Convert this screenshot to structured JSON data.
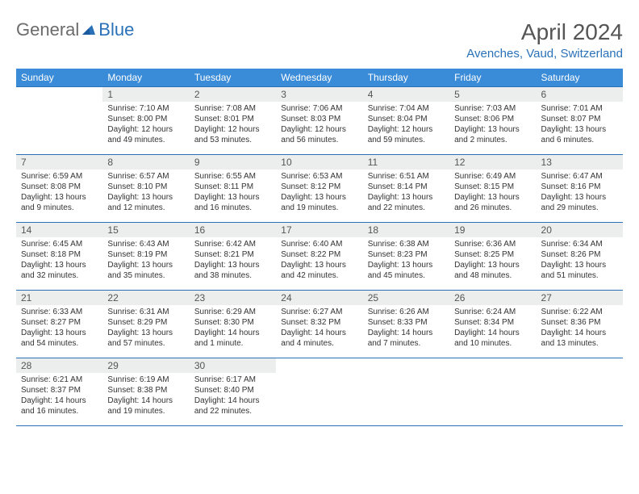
{
  "logo": {
    "general": "General",
    "blue": "Blue"
  },
  "title": "April 2024",
  "location": "Avenches, Vaud, Switzerland",
  "colors": {
    "header_bg": "#3a8bd8",
    "accent": "#2a71b8",
    "daynum_bg": "#eceded",
    "text": "#333333",
    "title_text": "#555555"
  },
  "weekdays": [
    "Sunday",
    "Monday",
    "Tuesday",
    "Wednesday",
    "Thursday",
    "Friday",
    "Saturday"
  ],
  "weeks": [
    [
      null,
      {
        "n": "1",
        "sr": "7:10 AM",
        "ss": "8:00 PM",
        "dl": "12 hours and 49 minutes."
      },
      {
        "n": "2",
        "sr": "7:08 AM",
        "ss": "8:01 PM",
        "dl": "12 hours and 53 minutes."
      },
      {
        "n": "3",
        "sr": "7:06 AM",
        "ss": "8:03 PM",
        "dl": "12 hours and 56 minutes."
      },
      {
        "n": "4",
        "sr": "7:04 AM",
        "ss": "8:04 PM",
        "dl": "12 hours and 59 minutes."
      },
      {
        "n": "5",
        "sr": "7:03 AM",
        "ss": "8:06 PM",
        "dl": "13 hours and 2 minutes."
      },
      {
        "n": "6",
        "sr": "7:01 AM",
        "ss": "8:07 PM",
        "dl": "13 hours and 6 minutes."
      }
    ],
    [
      {
        "n": "7",
        "sr": "6:59 AM",
        "ss": "8:08 PM",
        "dl": "13 hours and 9 minutes."
      },
      {
        "n": "8",
        "sr": "6:57 AM",
        "ss": "8:10 PM",
        "dl": "13 hours and 12 minutes."
      },
      {
        "n": "9",
        "sr": "6:55 AM",
        "ss": "8:11 PM",
        "dl": "13 hours and 16 minutes."
      },
      {
        "n": "10",
        "sr": "6:53 AM",
        "ss": "8:12 PM",
        "dl": "13 hours and 19 minutes."
      },
      {
        "n": "11",
        "sr": "6:51 AM",
        "ss": "8:14 PM",
        "dl": "13 hours and 22 minutes."
      },
      {
        "n": "12",
        "sr": "6:49 AM",
        "ss": "8:15 PM",
        "dl": "13 hours and 26 minutes."
      },
      {
        "n": "13",
        "sr": "6:47 AM",
        "ss": "8:16 PM",
        "dl": "13 hours and 29 minutes."
      }
    ],
    [
      {
        "n": "14",
        "sr": "6:45 AM",
        "ss": "8:18 PM",
        "dl": "13 hours and 32 minutes."
      },
      {
        "n": "15",
        "sr": "6:43 AM",
        "ss": "8:19 PM",
        "dl": "13 hours and 35 minutes."
      },
      {
        "n": "16",
        "sr": "6:42 AM",
        "ss": "8:21 PM",
        "dl": "13 hours and 38 minutes."
      },
      {
        "n": "17",
        "sr": "6:40 AM",
        "ss": "8:22 PM",
        "dl": "13 hours and 42 minutes."
      },
      {
        "n": "18",
        "sr": "6:38 AM",
        "ss": "8:23 PM",
        "dl": "13 hours and 45 minutes."
      },
      {
        "n": "19",
        "sr": "6:36 AM",
        "ss": "8:25 PM",
        "dl": "13 hours and 48 minutes."
      },
      {
        "n": "20",
        "sr": "6:34 AM",
        "ss": "8:26 PM",
        "dl": "13 hours and 51 minutes."
      }
    ],
    [
      {
        "n": "21",
        "sr": "6:33 AM",
        "ss": "8:27 PM",
        "dl": "13 hours and 54 minutes."
      },
      {
        "n": "22",
        "sr": "6:31 AM",
        "ss": "8:29 PM",
        "dl": "13 hours and 57 minutes."
      },
      {
        "n": "23",
        "sr": "6:29 AM",
        "ss": "8:30 PM",
        "dl": "14 hours and 1 minute."
      },
      {
        "n": "24",
        "sr": "6:27 AM",
        "ss": "8:32 PM",
        "dl": "14 hours and 4 minutes."
      },
      {
        "n": "25",
        "sr": "6:26 AM",
        "ss": "8:33 PM",
        "dl": "14 hours and 7 minutes."
      },
      {
        "n": "26",
        "sr": "6:24 AM",
        "ss": "8:34 PM",
        "dl": "14 hours and 10 minutes."
      },
      {
        "n": "27",
        "sr": "6:22 AM",
        "ss": "8:36 PM",
        "dl": "14 hours and 13 minutes."
      }
    ],
    [
      {
        "n": "28",
        "sr": "6:21 AM",
        "ss": "8:37 PM",
        "dl": "14 hours and 16 minutes."
      },
      {
        "n": "29",
        "sr": "6:19 AM",
        "ss": "8:38 PM",
        "dl": "14 hours and 19 minutes."
      },
      {
        "n": "30",
        "sr": "6:17 AM",
        "ss": "8:40 PM",
        "dl": "14 hours and 22 minutes."
      },
      null,
      null,
      null,
      null
    ]
  ],
  "labels": {
    "sunrise": "Sunrise:",
    "sunset": "Sunset:",
    "daylight": "Daylight:"
  }
}
